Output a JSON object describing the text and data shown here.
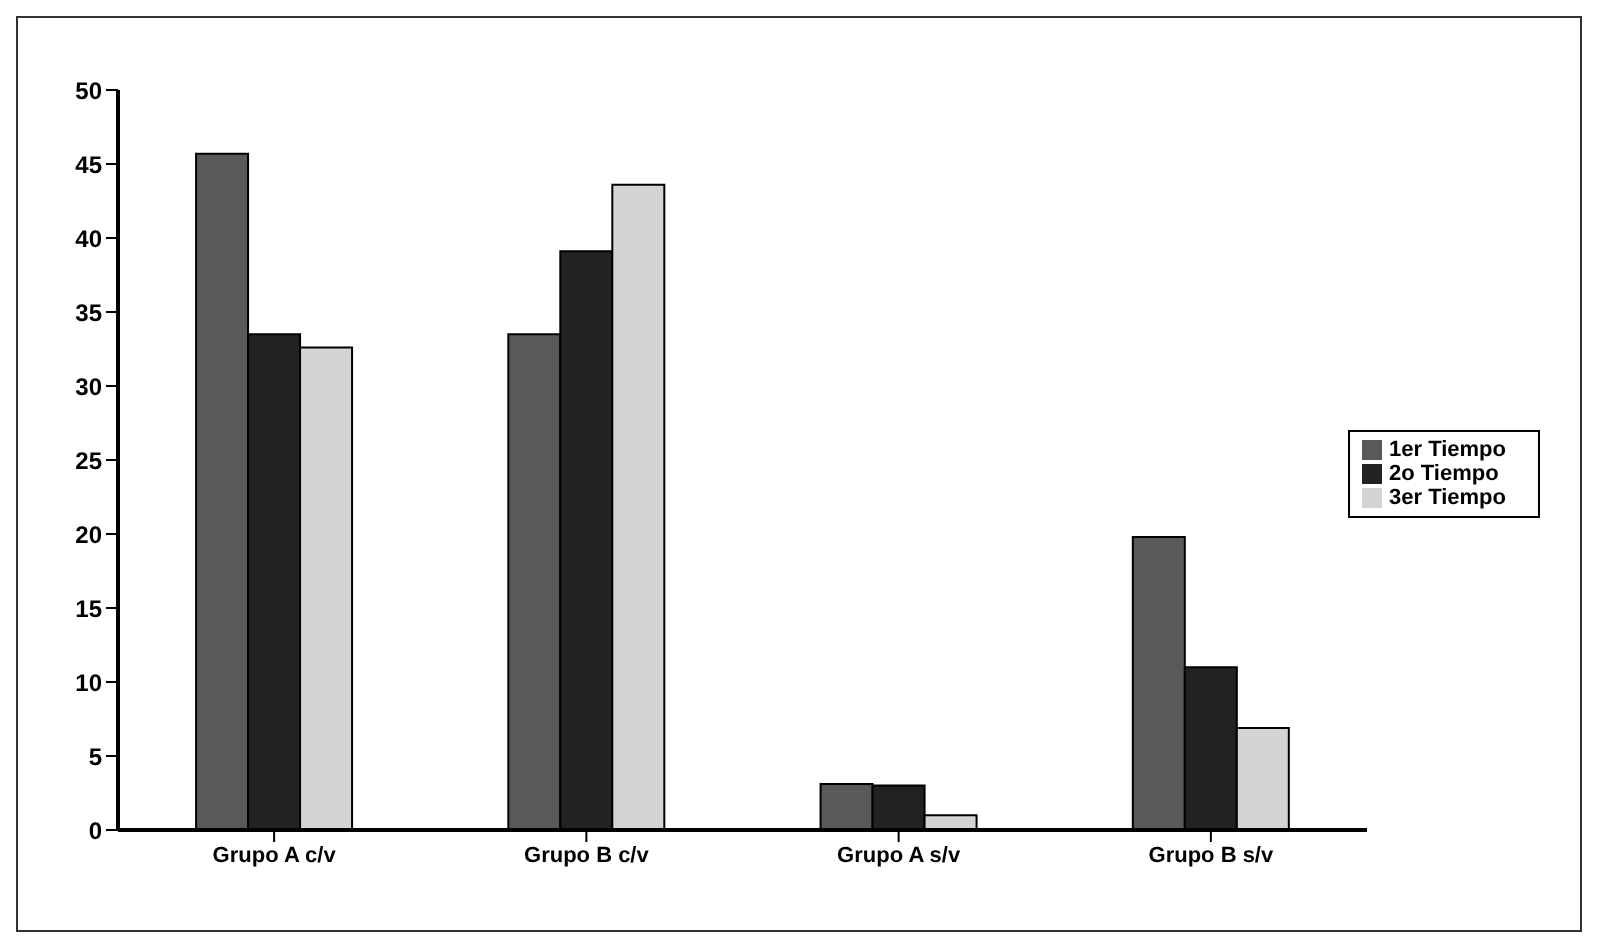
{
  "chart_data": {
    "type": "bar",
    "categories": [
      "Grupo A c/v",
      "Grupo B c/v",
      "Grupo A s/v",
      "Grupo B s/v"
    ],
    "series": [
      {
        "name": "1er Tiempo",
        "color": "#595959",
        "values": [
          45.7,
          33.5,
          3.1,
          19.8
        ]
      },
      {
        "name": "2o Tiempo",
        "color": "#222222",
        "values": [
          33.5,
          39.1,
          3.0,
          11.0
        ]
      },
      {
        "name": "3er Tiempo",
        "color": "#d4d4d4",
        "values": [
          32.6,
          43.6,
          1.0,
          6.9
        ]
      }
    ],
    "ylim": [
      0,
      50
    ],
    "yticks": [
      0,
      5,
      10,
      15,
      20,
      25,
      30,
      35,
      40,
      45,
      50
    ],
    "grid": false,
    "legend": "right"
  }
}
